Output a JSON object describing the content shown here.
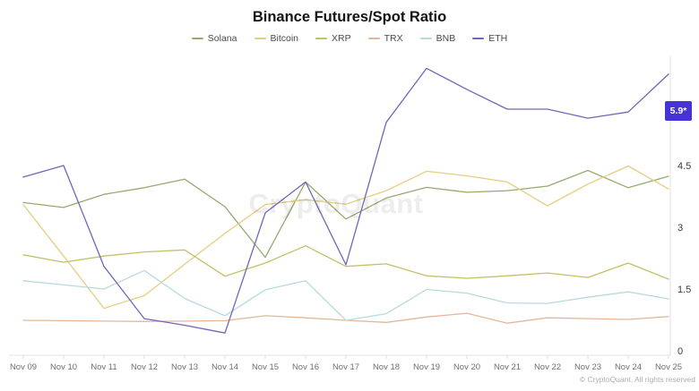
{
  "chart_data": {
    "type": "line",
    "title": "Binance Futures/Spot Ratio",
    "categories": [
      "Nov 09",
      "Nov 10",
      "Nov 11",
      "Nov 12",
      "Nov 13",
      "Nov 14",
      "Nov 15",
      "Nov 16",
      "Nov 17",
      "Nov 18",
      "Nov 19",
      "Nov 20",
      "Nov 21",
      "Nov 22",
      "Nov 23",
      "Nov 24",
      "Nov 25"
    ],
    "series": [
      {
        "name": "Solana",
        "color": "#94ab6d",
        "values": [
          3.6,
          3.48,
          3.8,
          3.96,
          4.17,
          3.5,
          2.27,
          4.1,
          3.2,
          3.71,
          3.97,
          3.85,
          3.89,
          4.0,
          4.38,
          3.96,
          4.24
        ]
      },
      {
        "name": "Bitcoin",
        "color": "#e6cd7f",
        "values": [
          3.55,
          2.3,
          1.03,
          1.34,
          2.1,
          2.85,
          3.55,
          3.67,
          3.56,
          3.89,
          4.36,
          4.25,
          4.1,
          3.52,
          4.05,
          4.49,
          3.93
        ]
      },
      {
        "name": "XRP",
        "color": "#c2c168",
        "values": [
          2.33,
          2.15,
          2.3,
          2.4,
          2.45,
          1.81,
          2.13,
          2.55,
          2.05,
          2.11,
          1.82,
          1.76,
          1.82,
          1.89,
          1.78,
          2.13,
          1.74
        ]
      },
      {
        "name": "TRX",
        "color": "#e4b79b",
        "values": [
          0.74,
          0.73,
          0.72,
          0.71,
          0.72,
          0.73,
          0.85,
          0.8,
          0.74,
          0.69,
          0.82,
          0.91,
          0.67,
          0.8,
          0.78,
          0.76,
          0.83
        ]
      },
      {
        "name": "BNB",
        "color": "#b7dade",
        "values": [
          1.7,
          1.6,
          1.5,
          1.95,
          1.27,
          0.85,
          1.48,
          1.7,
          0.74,
          0.9,
          1.49,
          1.4,
          1.16,
          1.15,
          1.3,
          1.43,
          1.26
        ]
      },
      {
        "name": "ETH",
        "color": "#6d68b5",
        "values": [
          4.22,
          4.5,
          2.05,
          0.78,
          0.62,
          0.43,
          3.35,
          4.1,
          2.09,
          5.55,
          6.86,
          6.35,
          5.87,
          5.87,
          5.65,
          5.8,
          6.72
        ]
      }
    ],
    "yticks": [
      0,
      1.5,
      3,
      4.5
    ],
    "ylim": [
      0,
      7.3
    ],
    "xlabel": "",
    "ylabel": "",
    "grid": false,
    "legend_position": "top",
    "y_axis_side": "right"
  },
  "badge": {
    "label": "5.9*",
    "bg_color": "#4633d6"
  },
  "watermark": "CryptoQuant",
  "footer": {
    "copyright": "© CryptoQuant. All rights reserved"
  }
}
